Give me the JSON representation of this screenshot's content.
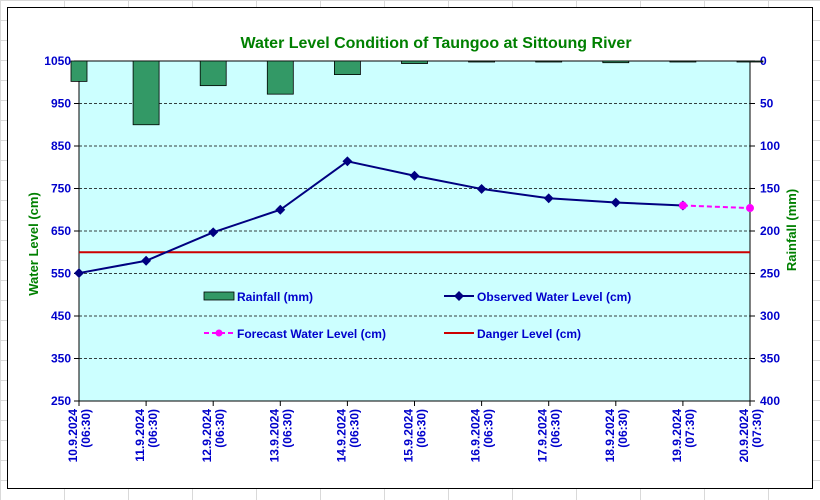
{
  "chart_data": {
    "type": "bar+line",
    "title": "Water Level Condition of Taungoo at  Sittoung River",
    "ylabel_left": "Water Level (cm)",
    "ylabel_right": "Rainfall (mm)",
    "left_axis": {
      "min": 250,
      "max": 1050,
      "step": 100,
      "reversed": false
    },
    "right_axis": {
      "min": 0,
      "max": 400,
      "step": 50,
      "reversed": true
    },
    "categories": [
      "10.9.2024 (06:30)",
      "11.9.2024 (06:30)",
      "12.9.2024 (06:30)",
      "13.9.2024 (06:30)",
      "14.9.2024 (06:30)",
      "15.9.2024 (06:30)",
      "16.9.2024 (06:30)",
      "17.9.2024 (06:30)",
      "18.9.2024 (06:30)",
      "19.9.2024 (07:30)",
      "20.9.2024 (07:30)"
    ],
    "series": [
      {
        "name": "Rainfall (mm)",
        "kind": "bar",
        "axis": "right",
        "color": "#339966",
        "values": [
          24,
          75,
          29,
          39,
          16,
          3,
          0,
          0,
          2,
          0,
          1
        ]
      },
      {
        "name": "Observed Water Level (cm)",
        "kind": "line",
        "axis": "left",
        "color": "#000080",
        "values": [
          551,
          580,
          647,
          700,
          814,
          780,
          749,
          727,
          717,
          710,
          null
        ]
      },
      {
        "name": "Forecast Water Level (cm)",
        "kind": "dashed-line",
        "axis": "left",
        "color": "#ff00ff",
        "values": [
          null,
          null,
          null,
          null,
          null,
          null,
          null,
          null,
          null,
          710,
          704
        ]
      },
      {
        "name": "Danger Level (cm)",
        "kind": "constant-line",
        "axis": "left",
        "color": "#cc0000",
        "value": 600
      }
    ],
    "colors": {
      "plot_background": "#ccffff",
      "title": "#008000",
      "axis_labels": "#008000",
      "tick_labels": "#0000cc",
      "legend_text": "#0000cc"
    },
    "grid": true,
    "legend_placement": "inside-bottom"
  }
}
